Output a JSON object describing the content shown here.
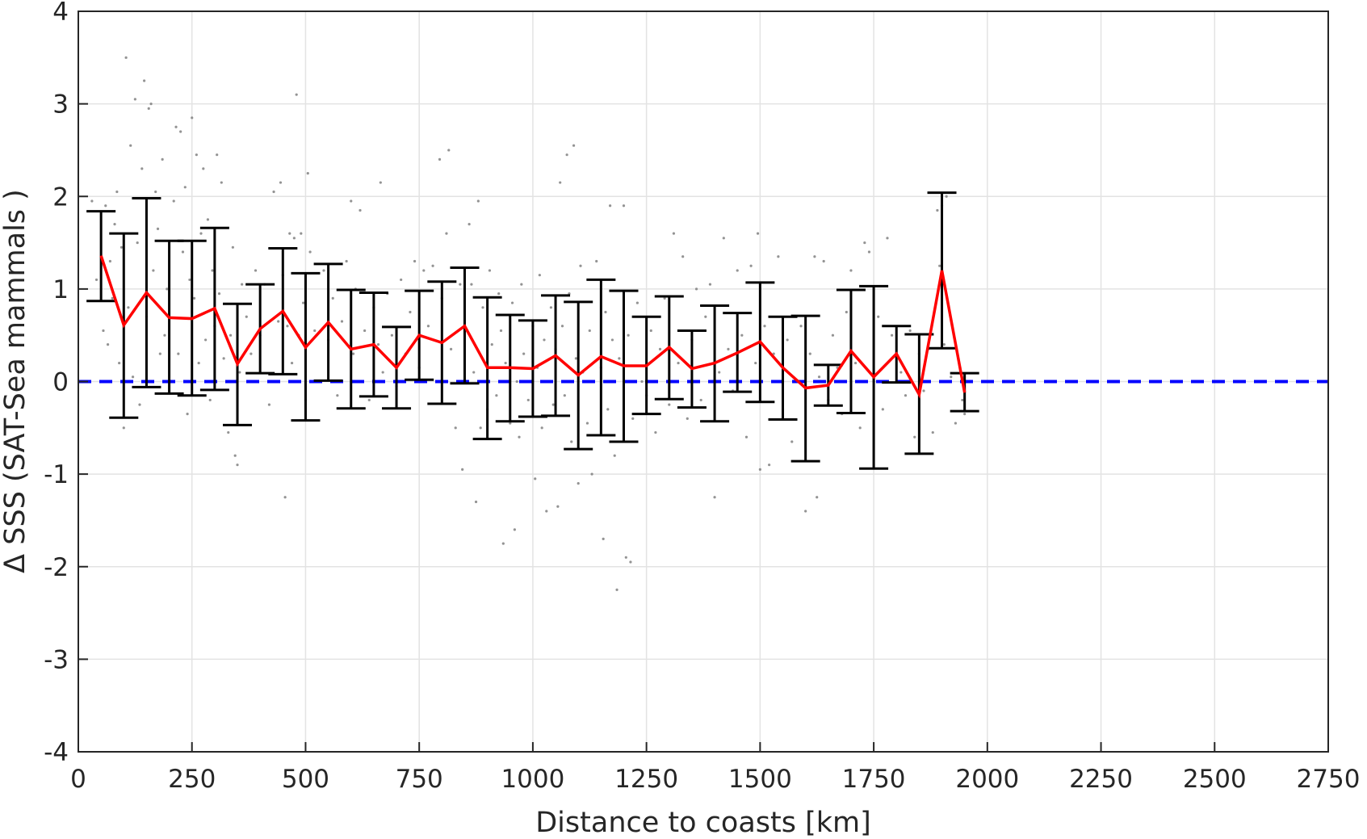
{
  "chart_data": {
    "type": "scatter",
    "xlabel": "Distance to coasts [km]",
    "ylabel": "Δ SSS (SAT-Sea mammals )",
    "xlim": [
      0,
      2750
    ],
    "ylim": [
      -4,
      4
    ],
    "x_ticks": [
      0,
      250,
      500,
      750,
      1000,
      1250,
      1500,
      1750,
      2000,
      2250,
      2500,
      2750
    ],
    "y_ticks": [
      -4,
      -3,
      -2,
      -1,
      0,
      1,
      2,
      3,
      4
    ],
    "grid": true,
    "colors": {
      "mean_line": "#ff0000",
      "error_bars": "#000000",
      "zero_line": "#0000ff",
      "points": "#808080"
    },
    "zero_line": {
      "y": 0,
      "style": "dashed"
    },
    "binned_means": {
      "x": [
        50,
        100,
        150,
        200,
        250,
        300,
        350,
        400,
        450,
        500,
        550,
        600,
        650,
        700,
        750,
        800,
        850,
        900,
        950,
        1000,
        1050,
        1100,
        1150,
        1200,
        1250,
        1300,
        1350,
        1400,
        1450,
        1500,
        1550,
        1600,
        1650,
        1700,
        1750,
        1800,
        1850,
        1900,
        1950
      ],
      "mean": [
        1.36,
        0.61,
        0.96,
        0.69,
        0.68,
        0.79,
        0.19,
        0.57,
        0.76,
        0.37,
        0.64,
        0.35,
        0.4,
        0.15,
        0.5,
        0.42,
        0.6,
        0.15,
        0.15,
        0.14,
        0.28,
        0.07,
        0.27,
        0.17,
        0.17,
        0.37,
        0.14,
        0.2,
        0.31,
        0.43,
        0.15,
        -0.07,
        -0.04,
        0.33,
        0.05,
        0.3,
        -0.14,
        1.2,
        -0.12
      ],
      "lower": [
        0.87,
        -0.39,
        -0.06,
        -0.13,
        -0.15,
        -0.09,
        -0.47,
        0.09,
        0.08,
        -0.42,
        0.01,
        -0.29,
        -0.16,
        -0.29,
        0.02,
        -0.24,
        -0.02,
        -0.62,
        -0.43,
        -0.38,
        -0.37,
        -0.73,
        -0.58,
        -0.65,
        -0.35,
        -0.19,
        -0.28,
        -0.43,
        -0.11,
        -0.22,
        -0.41,
        -0.86,
        -0.26,
        -0.34,
        -0.94,
        -0.01,
        -0.78,
        0.36,
        -0.32
      ],
      "upper": [
        1.84,
        1.6,
        1.98,
        1.52,
        1.52,
        1.66,
        0.84,
        1.05,
        1.44,
        1.17,
        1.27,
        0.99,
        0.96,
        0.59,
        0.98,
        1.08,
        1.23,
        0.91,
        0.72,
        0.66,
        0.93,
        0.86,
        1.1,
        0.98,
        0.7,
        0.92,
        0.55,
        0.82,
        0.74,
        1.07,
        0.7,
        0.71,
        0.18,
        0.99,
        1.03,
        0.6,
        0.51,
        2.04,
        0.09
      ]
    },
    "scatter_points": [
      [
        30,
        1.95
      ],
      [
        40,
        1.1
      ],
      [
        55,
        0.55
      ],
      [
        60,
        1.9
      ],
      [
        65,
        0.4
      ],
      [
        70,
        1.3
      ],
      [
        75,
        0.9
      ],
      [
        80,
        1.7
      ],
      [
        85,
        2.05
      ],
      [
        90,
        0.2
      ],
      [
        95,
        1.45
      ],
      [
        100,
        -0.5
      ],
      [
        105,
        3.5
      ],
      [
        110,
        0.8
      ],
      [
        115,
        2.55
      ],
      [
        120,
        0.05
      ],
      [
        125,
        3.05
      ],
      [
        130,
        1.5
      ],
      [
        135,
        -0.25
      ],
      [
        140,
        2.3
      ],
      [
        145,
        3.25
      ],
      [
        150,
        0.7
      ],
      [
        155,
        2.95
      ],
      [
        160,
        3.0
      ],
      [
        165,
        1.2
      ],
      [
        170,
        2.05
      ],
      [
        175,
        1.65
      ],
      [
        180,
        0.3
      ],
      [
        185,
        2.4
      ],
      [
        190,
        0.5
      ],
      [
        195,
        1.0
      ],
      [
        200,
        -0.1
      ],
      [
        210,
        1.95
      ],
      [
        215,
        2.75
      ],
      [
        220,
        0.3
      ],
      [
        225,
        2.7
      ],
      [
        230,
        1.4
      ],
      [
        235,
        2.1
      ],
      [
        240,
        -0.35
      ],
      [
        245,
        1.1
      ],
      [
        250,
        2.85
      ],
      [
        255,
        0.9
      ],
      [
        260,
        2.45
      ],
      [
        265,
        0.2
      ],
      [
        270,
        1.6
      ],
      [
        275,
        2.3
      ],
      [
        280,
        0.45
      ],
      [
        285,
        1.75
      ],
      [
        290,
        -0.2
      ],
      [
        295,
        1.2
      ],
      [
        300,
        0.6
      ],
      [
        305,
        2.45
      ],
      [
        310,
        0.95
      ],
      [
        315,
        2.15
      ],
      [
        320,
        0.25
      ],
      [
        330,
        -0.55
      ],
      [
        335,
        0.5
      ],
      [
        340,
        1.45
      ],
      [
        345,
        -0.8
      ],
      [
        350,
        -0.9
      ],
      [
        355,
        0.1
      ],
      [
        360,
        1.05
      ],
      [
        370,
        0.7
      ],
      [
        380,
        0.3
      ],
      [
        390,
        1.2
      ],
      [
        400,
        0.5
      ],
      [
        410,
        1.05
      ],
      [
        420,
        -0.25
      ],
      [
        430,
        2.05
      ],
      [
        440,
        0.65
      ],
      [
        445,
        2.15
      ],
      [
        450,
        1.15
      ],
      [
        455,
        -1.25
      ],
      [
        460,
        0.6
      ],
      [
        465,
        1.6
      ],
      [
        470,
        0.2
      ],
      [
        475,
        1.55
      ],
      [
        480,
        3.1
      ],
      [
        485,
        0.5
      ],
      [
        490,
        1.6
      ],
      [
        495,
        0.85
      ],
      [
        500,
        -0.2
      ],
      [
        505,
        2.25
      ],
      [
        510,
        1.4
      ],
      [
        520,
        0.55
      ],
      [
        530,
        0.0
      ],
      [
        540,
        1.2
      ],
      [
        550,
        0.45
      ],
      [
        560,
        0.9
      ],
      [
        570,
        -0.15
      ],
      [
        580,
        0.65
      ],
      [
        590,
        1.3
      ],
      [
        600,
        1.95
      ],
      [
        605,
        0.3
      ],
      [
        610,
        1.0
      ],
      [
        620,
        1.85
      ],
      [
        630,
        0.55
      ],
      [
        640,
        -0.2
      ],
      [
        650,
        0.8
      ],
      [
        660,
        0.4
      ],
      [
        665,
        2.15
      ],
      [
        670,
        0.1
      ],
      [
        680,
        0.95
      ],
      [
        690,
        0.5
      ],
      [
        700,
        -0.05
      ],
      [
        710,
        1.1
      ],
      [
        720,
        0.3
      ],
      [
        730,
        0.75
      ],
      [
        740,
        1.3
      ],
      [
        750,
        0.15
      ],
      [
        760,
        1.2
      ],
      [
        770,
        0.6
      ],
      [
        780,
        1.25
      ],
      [
        790,
        0.0
      ],
      [
        795,
        2.4
      ],
      [
        800,
        0.9
      ],
      [
        810,
        1.6
      ],
      [
        815,
        2.5
      ],
      [
        820,
        0.35
      ],
      [
        830,
        -0.5
      ],
      [
        840,
        1.05
      ],
      [
        845,
        -0.95
      ],
      [
        850,
        0.55
      ],
      [
        860,
        1.7
      ],
      [
        865,
        1.05
      ],
      [
        870,
        0.1
      ],
      [
        875,
        -1.3
      ],
      [
        880,
        1.95
      ],
      [
        885,
        -0.5
      ],
      [
        890,
        0.8
      ],
      [
        900,
        -0.3
      ],
      [
        905,
        1.2
      ],
      [
        910,
        0.4
      ],
      [
        920,
        -0.15
      ],
      [
        925,
        0.95
      ],
      [
        930,
        0.55
      ],
      [
        935,
        -1.75
      ],
      [
        940,
        0.2
      ],
      [
        950,
        -0.45
      ],
      [
        955,
        0.85
      ],
      [
        960,
        -1.6
      ],
      [
        965,
        0.0
      ],
      [
        970,
        -0.6
      ],
      [
        975,
        1.05
      ],
      [
        980,
        0.3
      ],
      [
        990,
        -0.2
      ],
      [
        1000,
        0.6
      ],
      [
        1005,
        -1.05
      ],
      [
        1010,
        0.15
      ],
      [
        1015,
        1.15
      ],
      [
        1020,
        -0.5
      ],
      [
        1025,
        0.45
      ],
      [
        1030,
        -1.4
      ],
      [
        1040,
        0.8
      ],
      [
        1045,
        -0.25
      ],
      [
        1050,
        0.35
      ],
      [
        1055,
        -1.35
      ],
      [
        1060,
        2.15
      ],
      [
        1065,
        0.6
      ],
      [
        1070,
        -0.15
      ],
      [
        1075,
        2.45
      ],
      [
        1080,
        0.95
      ],
      [
        1085,
        -0.65
      ],
      [
        1090,
        2.55
      ],
      [
        1095,
        0.25
      ],
      [
        1100,
        -1.1
      ],
      [
        1105,
        1.25
      ],
      [
        1110,
        0.1
      ],
      [
        1120,
        -0.45
      ],
      [
        1125,
        0.55
      ],
      [
        1130,
        -1.0
      ],
      [
        1140,
        1.3
      ],
      [
        1150,
        0.15
      ],
      [
        1155,
        -1.7
      ],
      [
        1160,
        0.75
      ],
      [
        1165,
        -0.3
      ],
      [
        1170,
        1.9
      ],
      [
        1175,
        0.45
      ],
      [
        1180,
        -0.8
      ],
      [
        1185,
        -2.25
      ],
      [
        1190,
        0.25
      ],
      [
        1200,
        1.9
      ],
      [
        1205,
        -1.9
      ],
      [
        1210,
        0.5
      ],
      [
        1215,
        -1.95
      ],
      [
        1220,
        -0.4
      ],
      [
        1230,
        0.85
      ],
      [
        1240,
        0.0
      ],
      [
        1250,
        -0.15
      ],
      [
        1260,
        0.55
      ],
      [
        1270,
        -0.55
      ],
      [
        1280,
        0.35
      ],
      [
        1290,
        0.9
      ],
      [
        1300,
        -0.25
      ],
      [
        1310,
        1.6
      ],
      [
        1320,
        0.2
      ],
      [
        1330,
        1.35
      ],
      [
        1340,
        -0.4
      ],
      [
        1350,
        0.45
      ],
      [
        1360,
        1.0
      ],
      [
        1370,
        -0.2
      ],
      [
        1380,
        0.7
      ],
      [
        1390,
        1.05
      ],
      [
        1400,
        -1.25
      ],
      [
        1410,
        0.1
      ],
      [
        1420,
        1.55
      ],
      [
        1430,
        0.35
      ],
      [
        1440,
        -0.1
      ],
      [
        1450,
        1.2
      ],
      [
        1460,
        0.5
      ],
      [
        1470,
        -0.6
      ],
      [
        1480,
        1.25
      ],
      [
        1490,
        0.2
      ],
      [
        1495,
        1.6
      ],
      [
        1500,
        -0.95
      ],
      [
        1510,
        0.6
      ],
      [
        1520,
        -0.9
      ],
      [
        1530,
        0.3
      ],
      [
        1540,
        1.35
      ],
      [
        1550,
        -0.3
      ],
      [
        1560,
        0.45
      ],
      [
        1570,
        -0.65
      ],
      [
        1580,
        0.0
      ],
      [
        1590,
        0.6
      ],
      [
        1600,
        -1.4
      ],
      [
        1610,
        0.3
      ],
      [
        1620,
        1.35
      ],
      [
        1625,
        -1.25
      ],
      [
        1630,
        0.05
      ],
      [
        1640,
        1.3
      ],
      [
        1650,
        -0.2
      ],
      [
        1660,
        0.5
      ],
      [
        1670,
        0.15
      ],
      [
        1680,
        -0.35
      ],
      [
        1690,
        0.75
      ],
      [
        1700,
        1.2
      ],
      [
        1710,
        0.2
      ],
      [
        1720,
        -0.5
      ],
      [
        1730,
        1.5
      ],
      [
        1740,
        1.4
      ],
      [
        1750,
        0.0
      ],
      [
        1760,
        0.7
      ],
      [
        1770,
        -0.3
      ],
      [
        1780,
        1.55
      ],
      [
        1790,
        0.5
      ],
      [
        1800,
        0.3
      ],
      [
        1810,
        0.1
      ],
      [
        1820,
        -0.15
      ],
      [
        1830,
        0.55
      ],
      [
        1840,
        -0.6
      ],
      [
        1850,
        0.3
      ],
      [
        1860,
        -0.1
      ],
      [
        1870,
        0.35
      ],
      [
        1880,
        -0.55
      ],
      [
        1890,
        1.85
      ],
      [
        1895,
        1.25
      ],
      [
        1900,
        1.9
      ],
      [
        1905,
        0.4
      ],
      [
        1910,
        2.0
      ],
      [
        1920,
        0.05
      ],
      [
        1930,
        -0.45
      ],
      [
        1940,
        0.15
      ],
      [
        1945,
        -0.2
      ],
      [
        1950,
        -0.35
      ]
    ]
  }
}
